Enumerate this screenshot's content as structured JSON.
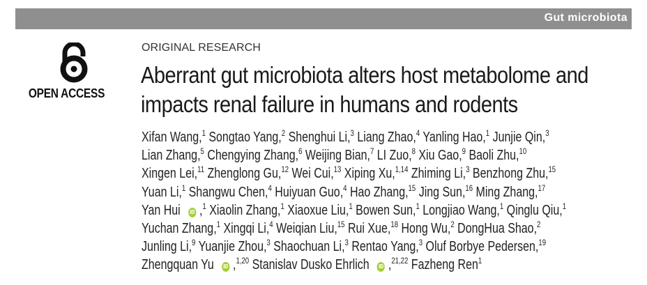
{
  "header": {
    "section_label": "Gut microbiota"
  },
  "open_access": {
    "icon": "open-access-lock-icon",
    "label": "OPEN ACCESS",
    "color": "#111111"
  },
  "article": {
    "type": "ORIGINAL RESEARCH",
    "title_lines": [
      "Aberrant gut microbiota alters host metabolome and",
      "impacts renal failure in humans and rodents"
    ]
  },
  "orcid": {
    "icon": "orcid-icon",
    "glyph": "iD",
    "color": "#a6ce39"
  },
  "author_lines": [
    [
      {
        "name": "Xifan Wang,",
        "aff": "1"
      },
      {
        "name": "Songtao Yang,",
        "aff": "2"
      },
      {
        "name": "Shenghui Li,",
        "aff": "3"
      },
      {
        "name": "Liang Zhao,",
        "aff": "4"
      },
      {
        "name": "Yanling Hao,",
        "aff": "1"
      },
      {
        "name": "Junjie Qin,",
        "aff": "3"
      }
    ],
    [
      {
        "name": "Lian Zhang,",
        "aff": "5"
      },
      {
        "name": "Chengying Zhang,",
        "aff": "6"
      },
      {
        "name": "Weijing Bian,",
        "aff": "7"
      },
      {
        "name": "LI Zuo,",
        "aff": "8"
      },
      {
        "name": "Xiu Gao,",
        "aff": "9"
      },
      {
        "name": "Baoli Zhu,",
        "aff": "10"
      }
    ],
    [
      {
        "name": "Xingen Lei,",
        "aff": "11"
      },
      {
        "name": "Zhenglong Gu,",
        "aff": "12"
      },
      {
        "name": "Wei Cui,",
        "aff": "13"
      },
      {
        "name": "Xiping Xu,",
        "aff": "1,14"
      },
      {
        "name": "Zhiming Li,",
        "aff": "3"
      },
      {
        "name": "Benzhong Zhu,",
        "aff": "15"
      }
    ],
    [
      {
        "name": "Yuan Li,",
        "aff": "1"
      },
      {
        "name": "Shangwu Chen,",
        "aff": "4"
      },
      {
        "name": "Huiyuan Guo,",
        "aff": "4"
      },
      {
        "name": "Hao Zhang,",
        "aff": "15"
      },
      {
        "name": "Jing Sun,",
        "aff": "16"
      },
      {
        "name": "Ming Zhang,",
        "aff": "17"
      }
    ],
    [
      {
        "name": "Yan Hui",
        "orcid": true,
        "after": ",",
        "aff": "1"
      },
      {
        "name": "Xiaolin Zhang,",
        "aff": "1"
      },
      {
        "name": "Xiaoxue Liu,",
        "aff": "1"
      },
      {
        "name": "Bowen Sun,",
        "aff": "1"
      },
      {
        "name": "Longjiao Wang,",
        "aff": "1"
      },
      {
        "name": "Qinglu Qiu,",
        "aff": "1"
      }
    ],
    [
      {
        "name": "Yuchan Zhang,",
        "aff": "1"
      },
      {
        "name": "Xingqi Li,",
        "aff": "4"
      },
      {
        "name": "Weiqian Liu,",
        "aff": "15"
      },
      {
        "name": "Rui Xue,",
        "aff": "18"
      },
      {
        "name": "Hong Wu,",
        "aff": "2"
      },
      {
        "name": "DongHua Shao,",
        "aff": "2"
      }
    ],
    [
      {
        "name": "Junling Li,",
        "aff": "9"
      },
      {
        "name": "Yuanjie Zhou,",
        "aff": "3"
      },
      {
        "name": "Shaochuan Li,",
        "aff": "3"
      },
      {
        "name": "Rentao Yang,",
        "aff": "3"
      },
      {
        "name": "Oluf Borbye Pedersen,",
        "aff": "19"
      }
    ],
    [
      {
        "name": "Zhengquan Yu",
        "orcid": true,
        "after": ",",
        "aff": "1,20"
      },
      {
        "name": "Stanislav Dusko Ehrlich",
        "orcid": true,
        "after": ",",
        "aff": "21,22"
      },
      {
        "name": "Fazheng Ren",
        "aff": "1"
      }
    ]
  ]
}
